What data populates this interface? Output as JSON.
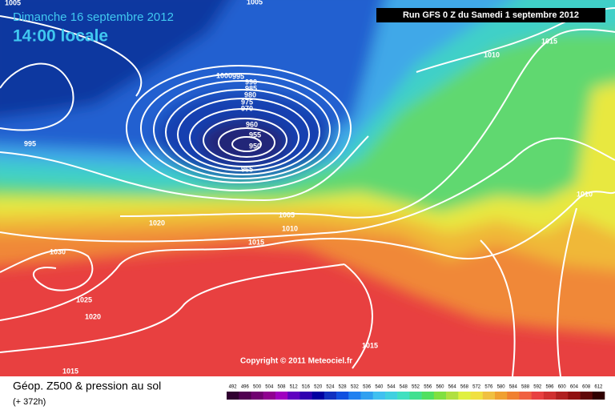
{
  "header": {
    "date": "Dimanche 16 septembre 2012",
    "time": "14:00 locale",
    "run": "Run GFS 0 Z du Samedi 1 septembre 2012"
  },
  "isobar_labels": [
    "1005",
    "1005",
    "1000",
    "995",
    "990",
    "985",
    "980",
    "975",
    "970",
    "960",
    "955",
    "950",
    "965",
    "995",
    "1020",
    "1005",
    "1010",
    "1015",
    "1030",
    "1025",
    "1020",
    "1015",
    "1010",
    "1015",
    "1010",
    "1015"
  ],
  "copyright": "Copyright © 2011 Meteociel.fr",
  "footer": {
    "title": "Géop. Z500 & pression au sol",
    "lead": "(+ 372h)"
  },
  "legend": {
    "values": [
      492,
      496,
      500,
      504,
      508,
      512,
      516,
      520,
      524,
      528,
      532,
      536,
      540,
      544,
      548,
      552,
      556,
      560,
      564,
      568,
      572,
      576,
      580,
      584,
      588,
      592,
      596,
      600,
      604,
      608,
      612
    ],
    "colors": [
      "#300030",
      "#500050",
      "#700070",
      "#900090",
      "#a000c0",
      "#6000c0",
      "#3000b0",
      "#0000a0",
      "#1030c0",
      "#1050e0",
      "#2080f0",
      "#30a0f0",
      "#40c0f0",
      "#40d0e0",
      "#40e0c0",
      "#40e090",
      "#50e060",
      "#80e040",
      "#b0e040",
      "#e0f040",
      "#f0e040",
      "#f0c040",
      "#f0a030",
      "#f08030",
      "#f06040",
      "#e84040",
      "#d03030",
      "#b02020",
      "#901010",
      "#600808",
      "#300000"
    ]
  }
}
